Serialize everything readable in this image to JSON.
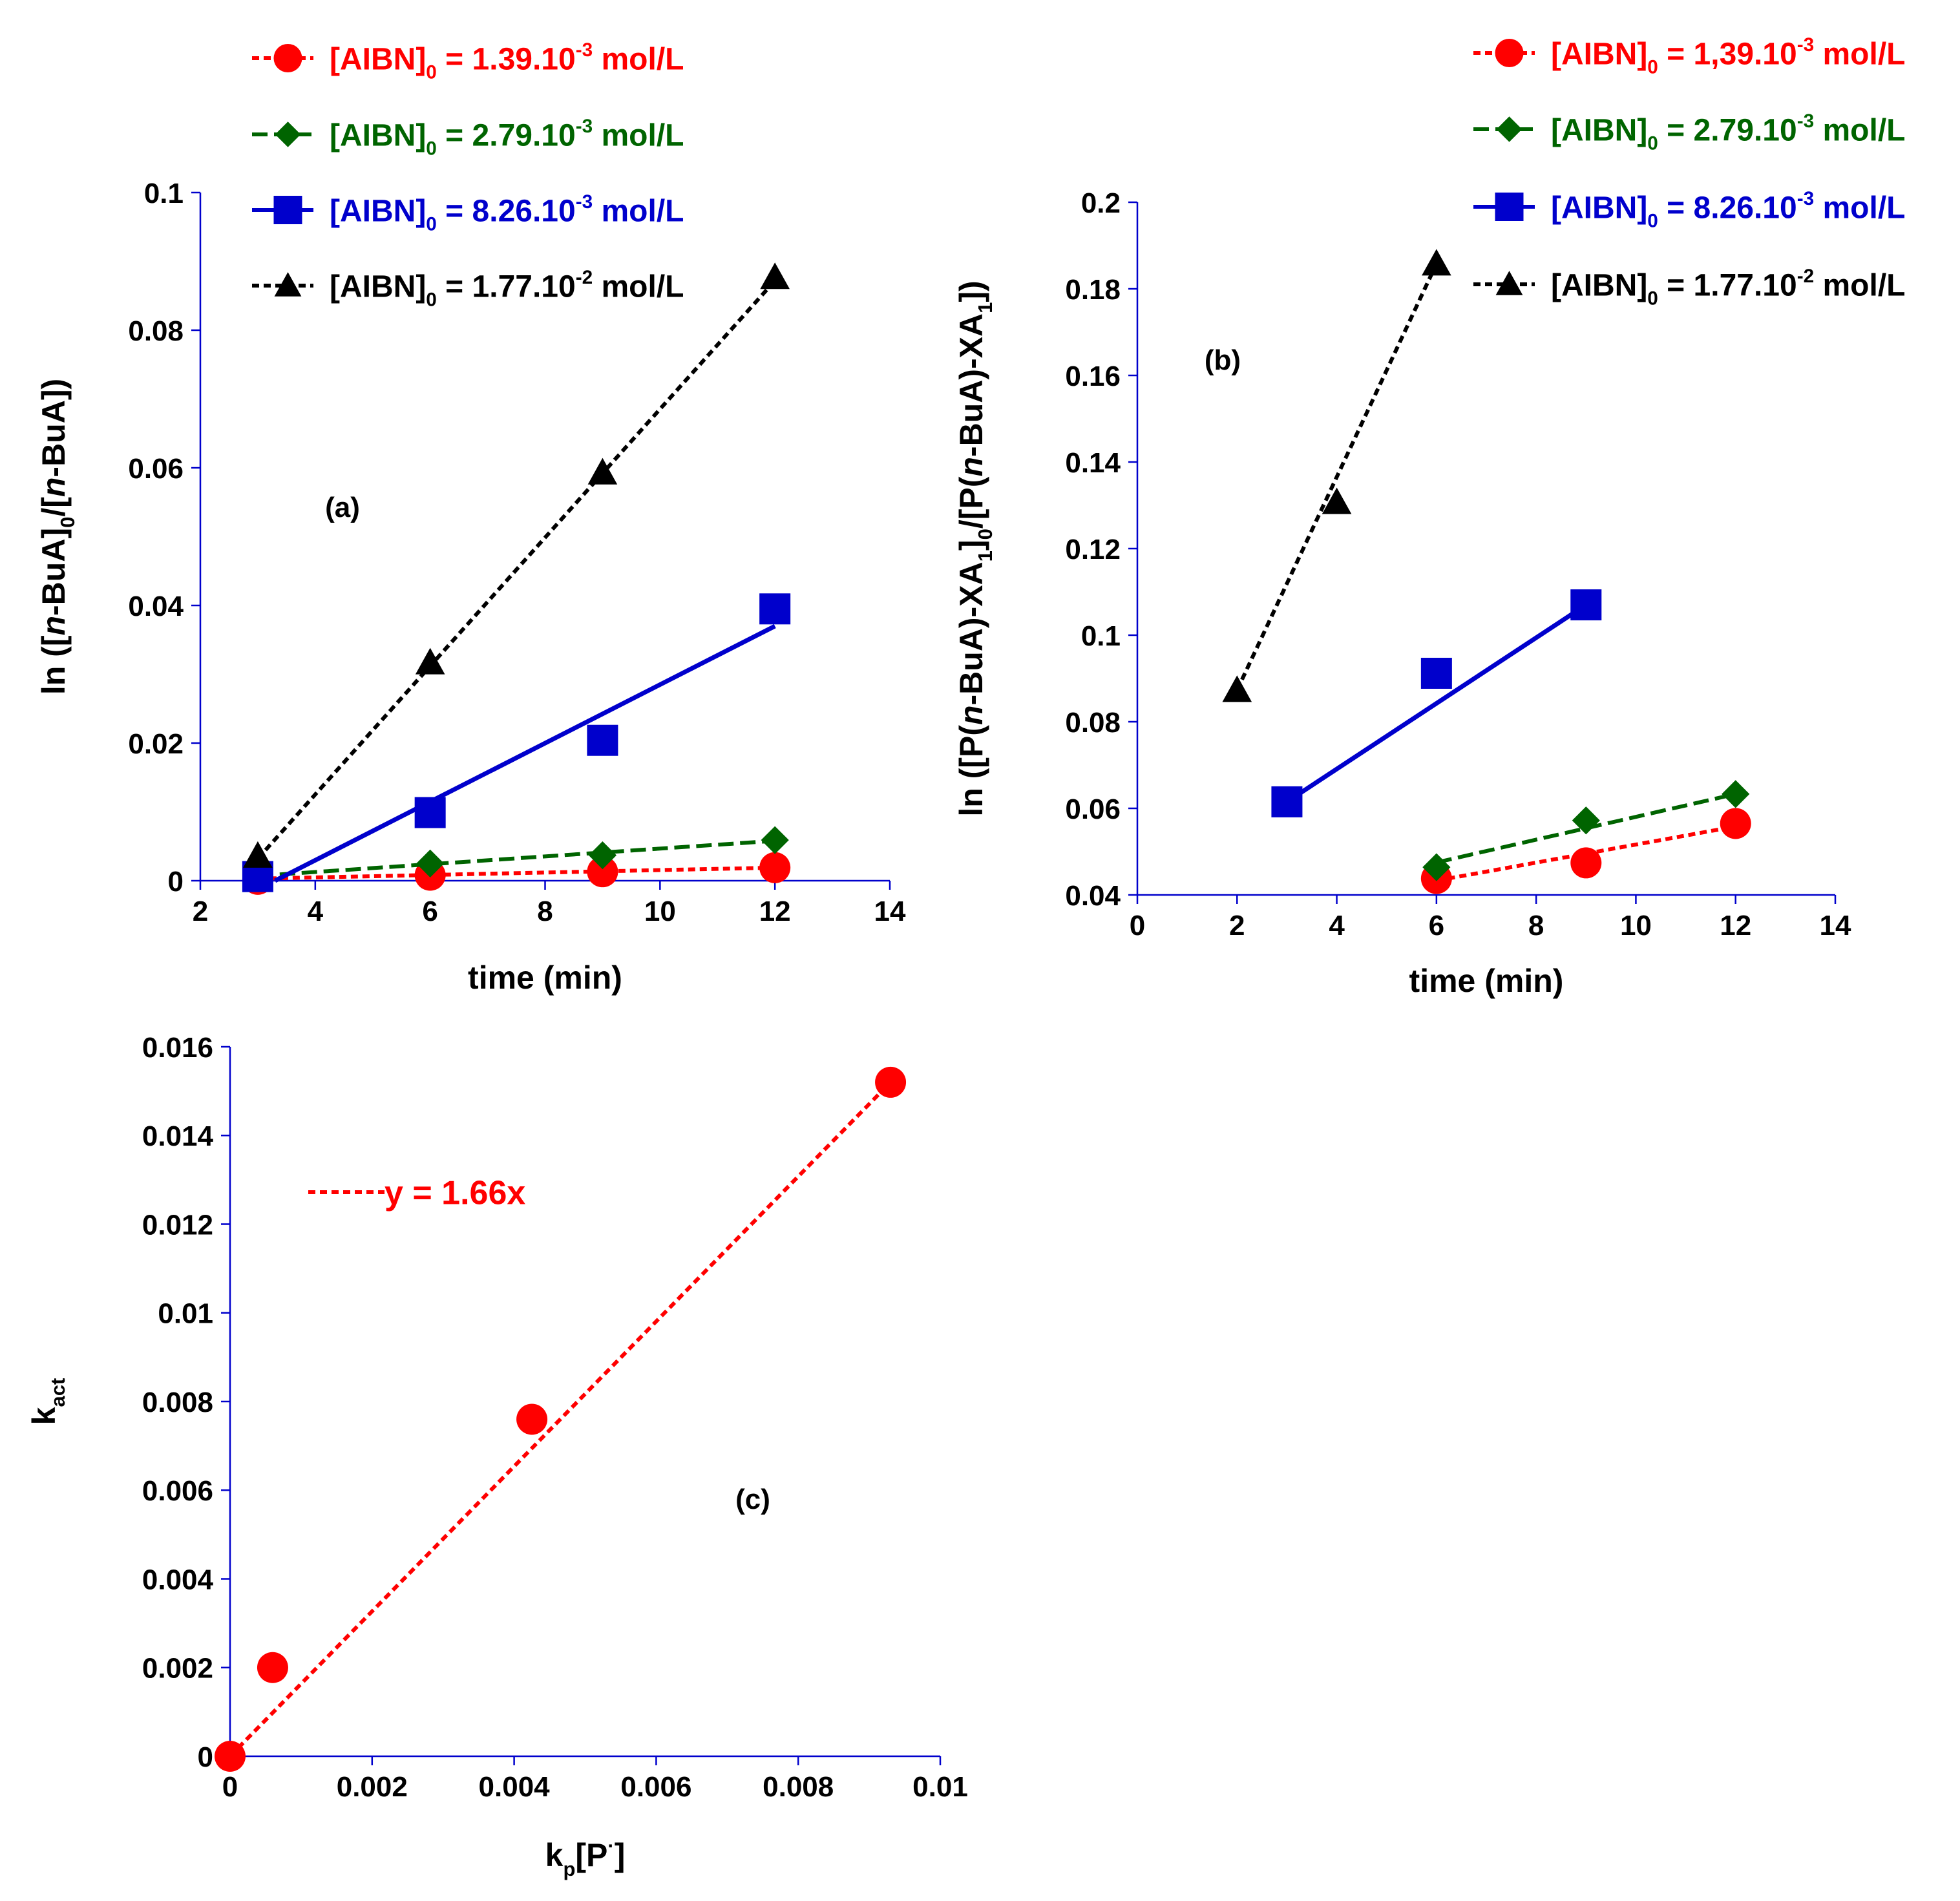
{
  "chart_data": [
    {
      "id": "a",
      "type": "scatter",
      "panel_label": "(a)",
      "title": "",
      "xlabel": "time (min)",
      "ylabel": {
        "parts": [
          {
            "t": "ln ([",
            "style": "n"
          },
          {
            "t": "n",
            "style": "i"
          },
          {
            "t": "-BuA]",
            "style": "n"
          },
          {
            "t": "0",
            "style": "sub"
          },
          {
            "t": "/[",
            "style": "n"
          },
          {
            "t": "n",
            "style": "i"
          },
          {
            "t": "-BuA])",
            "style": "n"
          }
        ]
      },
      "xlim": [
        2,
        14
      ],
      "ylim": [
        0,
        0.1
      ],
      "xticks": [
        2,
        4,
        6,
        8,
        10,
        12,
        14
      ],
      "xtick_labels": [
        "2",
        "4",
        "6",
        "8",
        "10",
        "12",
        "14"
      ],
      "yticks": [
        0,
        0.02,
        0.04,
        0.06,
        0.08,
        0.1
      ],
      "ytick_labels": [
        "0",
        "0.02",
        "0.04",
        "0.06",
        "0.08",
        "0.1"
      ],
      "grid": false,
      "legend_position": "top, above plot",
      "series": [
        {
          "name": "[AIBN]0 = 1.39.10-3 mol/L",
          "color": "#ff0000",
          "marker": "circle",
          "dash": "dotted",
          "legend": [
            {
              "t": "[AIBN]",
              "style": "n"
            },
            {
              "t": "0",
              "style": "sub"
            },
            {
              "t": " = 1.39.10",
              "style": "n"
            },
            {
              "t": "-3",
              "style": "sup"
            },
            {
              "t": " mol/L",
              "style": "n"
            }
          ],
          "x": [
            3,
            6,
            9,
            12
          ],
          "y": [
            0.0002,
            0.0008,
            0.0013,
            0.0019
          ],
          "fit": [
            [
              3,
              0.0003
            ],
            [
              12,
              0.0019
            ]
          ]
        },
        {
          "name": "[AIBN]0 = 2.79.10-3 mol/L",
          "color": "#006400",
          "marker": "diamond",
          "dash": "dashed",
          "legend": [
            {
              "t": "[AIBN]",
              "style": "n"
            },
            {
              "t": "0",
              "style": "sub"
            },
            {
              "t": " = 2.79.10",
              "style": "n"
            },
            {
              "t": "-3",
              "style": "sup"
            },
            {
              "t": " mol/L",
              "style": "n"
            }
          ],
          "x": [
            3,
            6,
            9,
            12
          ],
          "y": [
            0.0008,
            0.0025,
            0.0037,
            0.0059
          ],
          "fit": [
            [
              3,
              0.0007
            ],
            [
              12,
              0.0058
            ]
          ]
        },
        {
          "name": "[AIBN]0 = 8.26.10-3 mol/L",
          "color": "#0000cc",
          "marker": "square",
          "dash": "solid",
          "legend": [
            {
              "t": "[AIBN]",
              "style": "n"
            },
            {
              "t": "0",
              "style": "sub"
            },
            {
              "t": " = 8.26.10",
              "style": "n"
            },
            {
              "t": "-3",
              "style": "sup"
            },
            {
              "t": " mol/L",
              "style": "n"
            }
          ],
          "x": [
            3,
            6,
            9,
            12
          ],
          "y": [
            0.0006,
            0.0099,
            0.0204,
            0.0395
          ],
          "fit": [
            [
              3.3,
              0
            ],
            [
              12,
              0.037
            ]
          ]
        },
        {
          "name": "[AIBN]0 = 1.77.10-2 mol/L",
          "color": "#000000",
          "marker": "triangle",
          "dash": "dotted",
          "legend": [
            {
              "t": "[AIBN]",
              "style": "n"
            },
            {
              "t": "0",
              "style": "sub"
            },
            {
              "t": " = 1.77.10",
              "style": "n"
            },
            {
              "t": "-2",
              "style": "sup"
            },
            {
              "t": " mol/L",
              "style": "n"
            }
          ],
          "x": [
            3,
            6,
            9,
            12
          ],
          "y": [
            0.0036,
            0.0317,
            0.0593,
            0.0877
          ],
          "fit": [
            [
              3,
              0.0032
            ],
            [
              12,
              0.0872
            ]
          ]
        }
      ]
    },
    {
      "id": "b",
      "type": "scatter",
      "panel_label": "(b)",
      "title": "",
      "xlabel": "time (min)",
      "ylabel": {
        "parts": [
          {
            "t": "ln ([P(",
            "style": "n"
          },
          {
            "t": "n",
            "style": "i"
          },
          {
            "t": "-BuA)-XA",
            "style": "n"
          },
          {
            "t": "1",
            "style": "sub"
          },
          {
            "t": "]",
            "style": "n"
          },
          {
            "t": "0",
            "style": "sub"
          },
          {
            "t": "/[P(",
            "style": "n"
          },
          {
            "t": "n",
            "style": "i"
          },
          {
            "t": "-BuA)-XA",
            "style": "n"
          },
          {
            "t": "1",
            "style": "sub"
          },
          {
            "t": "])",
            "style": "n"
          }
        ]
      },
      "xlim": [
        0,
        14
      ],
      "ylim": [
        0.04,
        0.2
      ],
      "xticks": [
        0,
        2,
        4,
        6,
        8,
        10,
        12,
        14
      ],
      "xtick_labels": [
        "0",
        "2",
        "4",
        "6",
        "8",
        "10",
        "12",
        "14"
      ],
      "yticks": [
        0.04,
        0.06,
        0.08,
        0.1,
        0.12,
        0.14,
        0.16,
        0.18,
        0.2
      ],
      "ytick_labels": [
        "0.04",
        "0.06",
        "0.08",
        "0.1",
        "0.12",
        "0.14",
        "0.16",
        "0.18",
        "0.2"
      ],
      "grid": false,
      "legend_position": "top-right, above plot",
      "series": [
        {
          "name": "[AIBN]0 = 1,39.10-3 mol/L",
          "color": "#ff0000",
          "marker": "circle",
          "dash": "dotted",
          "legend": [
            {
              "t": "[AIBN]",
              "style": "n"
            },
            {
              "t": "0",
              "style": "sub"
            },
            {
              "t": " = 1,39.10",
              "style": "n"
            },
            {
              "t": "-3",
              "style": "sup"
            },
            {
              "t": " mol/L",
              "style": "n"
            }
          ],
          "x": [
            6,
            9,
            12
          ],
          "y": [
            0.0438,
            0.0474,
            0.0565
          ],
          "fit": [
            [
              6,
              0.0433
            ],
            [
              12,
              0.0558
            ]
          ]
        },
        {
          "name": "[AIBN]0 = 2.79.10-3 mol/L",
          "color": "#006400",
          "marker": "diamond",
          "dash": "dashed",
          "legend": [
            {
              "t": "[AIBN]",
              "style": "n"
            },
            {
              "t": "0",
              "style": "sub"
            },
            {
              "t": " = 2.79.10",
              "style": "n"
            },
            {
              "t": "-3",
              "style": "sup"
            },
            {
              "t": " mol/L",
              "style": "n"
            }
          ],
          "x": [
            6,
            9,
            12
          ],
          "y": [
            0.0464,
            0.0572,
            0.0633
          ],
          "fit": [
            [
              6,
              0.0475
            ],
            [
              12,
              0.0633
            ]
          ]
        },
        {
          "name": "[AIBN]0 = 8.26.10-3 mol/L",
          "color": "#0000cc",
          "marker": "square",
          "dash": "solid",
          "legend": [
            {
              "t": "[AIBN]",
              "style": "n"
            },
            {
              "t": "0",
              "style": "sub"
            },
            {
              "t": " = 8.26.10",
              "style": "n"
            },
            {
              "t": "-3",
              "style": "sup"
            },
            {
              "t": " mol/L",
              "style": "n"
            }
          ],
          "x": [
            3,
            6,
            9
          ],
          "y": [
            0.0615,
            0.0912,
            0.107
          ],
          "fit": [
            [
              3,
              0.0615
            ],
            [
              9,
              0.107
            ]
          ]
        },
        {
          "name": "[AIBN]0 = 1.77.10-2 mol/L",
          "color": "#000000",
          "marker": "triangle",
          "dash": "dotted",
          "legend": [
            {
              "t": "[AIBN]",
              "style": "n"
            },
            {
              "t": "0",
              "style": "sub"
            },
            {
              "t": " = 1.77.10",
              "style": "n"
            },
            {
              "t": "-2",
              "style": "sup"
            },
            {
              "t": " mol/L",
              "style": "n"
            }
          ],
          "x": [
            2,
            4,
            6
          ],
          "y": [
            0.0873,
            0.1307,
            0.1858
          ],
          "fit": [
            [
              2,
              0.0873
            ],
            [
              6,
              0.1858
            ]
          ]
        }
      ]
    },
    {
      "id": "c",
      "type": "scatter",
      "panel_label": "(c)",
      "title": "",
      "xlabel": {
        "parts": [
          {
            "t": "k",
            "style": "n"
          },
          {
            "t": "p",
            "style": "sub"
          },
          {
            "t": "[P",
            "style": "n"
          },
          {
            "t": "·",
            "style": "sup"
          },
          {
            "t": "]",
            "style": "n"
          }
        ]
      },
      "ylabel": {
        "parts": [
          {
            "t": "k",
            "style": "n"
          },
          {
            "t": "act",
            "style": "sub"
          }
        ]
      },
      "xlim": [
        0,
        0.01
      ],
      "ylim": [
        0,
        0.016
      ],
      "xticks": [
        0,
        0.002,
        0.004,
        0.006,
        0.008,
        0.01
      ],
      "xtick_labels": [
        "0",
        "0.002",
        "0.004",
        "0.006",
        "0.008",
        "0.01"
      ],
      "yticks": [
        0,
        0.002,
        0.004,
        0.006,
        0.008,
        0.01,
        0.012,
        0.014,
        0.016
      ],
      "ytick_labels": [
        "0",
        "0.002",
        "0.004",
        "0.006",
        "0.008",
        "0.01",
        "0.012",
        "0.014",
        "0.016"
      ],
      "grid": false,
      "legend_position": "upper-left, inside plot",
      "series": [
        {
          "name": "y = 1.66x",
          "color": "#ff0000",
          "marker": "circle",
          "dash": "dotted",
          "legend": [
            {
              "t": "y = 1.66x",
              "style": "n"
            }
          ],
          "x": [
            0,
            0.0006,
            0.00425,
            0.0093
          ],
          "y": [
            0,
            0.002,
            0.0076,
            0.0152
          ],
          "fit": [
            [
              0,
              0
            ],
            [
              0.0093,
              0.0152
            ]
          ]
        }
      ]
    }
  ]
}
